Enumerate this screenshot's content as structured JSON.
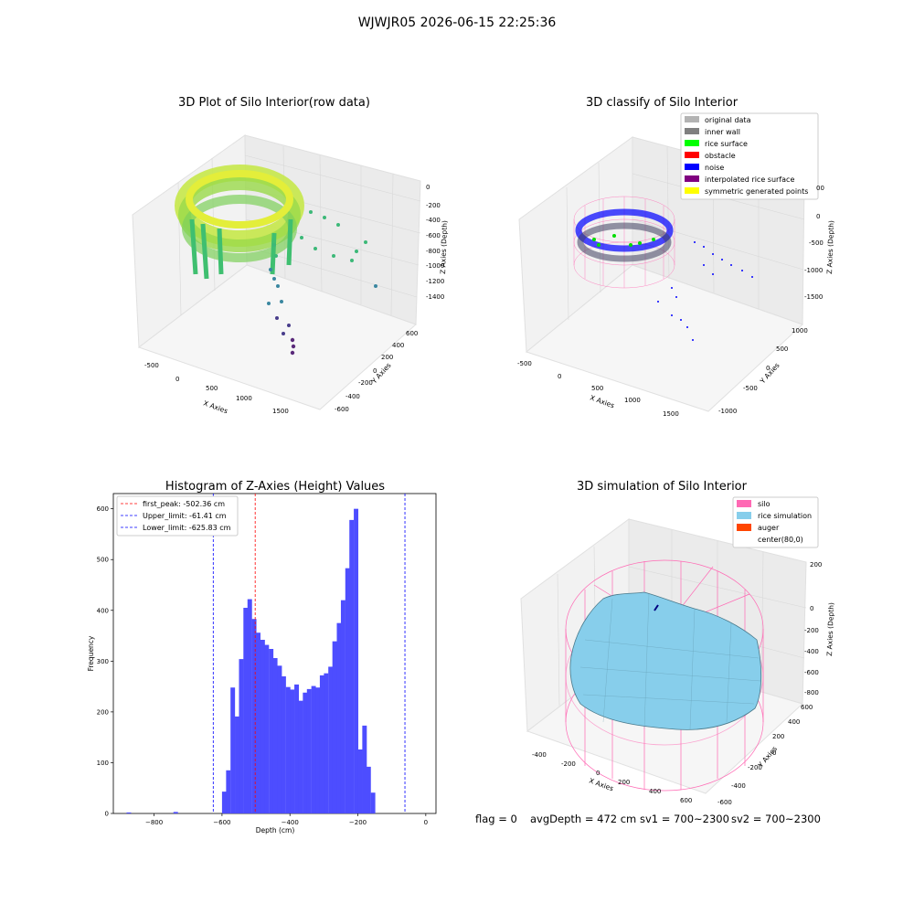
{
  "suptitle": "WJWJR05 2026-06-15 22:25:36",
  "plot1": {
    "title": "3D Plot of Silo Interior(row data)",
    "xlabel": "X Axies",
    "ylabel": "Y Axies",
    "zlabel": "Z Axies (Depth)",
    "x_ticks": [
      "-500",
      "0",
      "500",
      "1000",
      "1500"
    ],
    "y_ticks": [
      "-600",
      "-400",
      "-200",
      "0",
      "200",
      "400",
      "600"
    ],
    "z_ticks": [
      "0",
      "-200",
      "-400",
      "-600",
      "-800",
      "-1000",
      "-1200",
      "-1400"
    ]
  },
  "plot2": {
    "title": "3D classify of Silo Interior",
    "xlabel": "X Axies",
    "ylabel": "Y Axies",
    "zlabel": "Z Axies (Depth)",
    "x_ticks": [
      "-500",
      "0",
      "500",
      "1000",
      "1500"
    ],
    "y_ticks": [
      "-1000",
      "-500",
      "0",
      "500",
      "1000"
    ],
    "z_ticks": [
      "0",
      "-500",
      "-1000",
      "-1500"
    ],
    "z_top_partial": "00",
    "legend": [
      {
        "label": "original data",
        "color": "#b3b3b3"
      },
      {
        "label": "inner wall",
        "color": "#808080"
      },
      {
        "label": "rice surface",
        "color": "#00ff00"
      },
      {
        "label": "obstacle",
        "color": "#ff0000"
      },
      {
        "label": "noise",
        "color": "#0000ff"
      },
      {
        "label": "interpolated rice surface",
        "color": "#800080"
      },
      {
        "label": "symmetric generated points",
        "color": "#ffff00"
      }
    ]
  },
  "chart_data": [
    {
      "type": "histogram",
      "title": "Histogram of Z-Axies (Height) Values",
      "xlabel": "Depth (cm)",
      "ylabel": "Frequency",
      "xlim": [
        -920,
        30
      ],
      "ylim": [
        0,
        630
      ],
      "x_ticks": [
        -800,
        -600,
        -400,
        -200,
        0
      ],
      "y_ticks": [
        0,
        100,
        200,
        300,
        400,
        500,
        600
      ],
      "bar_color": "#4d4dff",
      "bin_width": 12.5,
      "bins": [
        {
          "x": -881,
          "count": 2
        },
        {
          "x": -743,
          "count": 3
        },
        {
          "x": -600,
          "count": 43
        },
        {
          "x": -588,
          "count": 85
        },
        {
          "x": -575,
          "count": 248
        },
        {
          "x": -562,
          "count": 191
        },
        {
          "x": -550,
          "count": 304
        },
        {
          "x": -537,
          "count": 405
        },
        {
          "x": -525,
          "count": 422
        },
        {
          "x": -512,
          "count": 383
        },
        {
          "x": -500,
          "count": 356
        },
        {
          "x": -487,
          "count": 342
        },
        {
          "x": -475,
          "count": 332
        },
        {
          "x": -462,
          "count": 324
        },
        {
          "x": -450,
          "count": 306
        },
        {
          "x": -437,
          "count": 291
        },
        {
          "x": -425,
          "count": 270
        },
        {
          "x": -412,
          "count": 249
        },
        {
          "x": -400,
          "count": 244
        },
        {
          "x": -387,
          "count": 254
        },
        {
          "x": -375,
          "count": 222
        },
        {
          "x": -362,
          "count": 238
        },
        {
          "x": -350,
          "count": 245
        },
        {
          "x": -337,
          "count": 251
        },
        {
          "x": -325,
          "count": 248
        },
        {
          "x": -312,
          "count": 272
        },
        {
          "x": -300,
          "count": 276
        },
        {
          "x": -287,
          "count": 289
        },
        {
          "x": -275,
          "count": 339
        },
        {
          "x": -262,
          "count": 375
        },
        {
          "x": -250,
          "count": 420
        },
        {
          "x": -237,
          "count": 483
        },
        {
          "x": -225,
          "count": 578
        },
        {
          "x": -212,
          "count": 600
        },
        {
          "x": -200,
          "count": 126
        },
        {
          "x": -187,
          "count": 173
        },
        {
          "x": -175,
          "count": 92
        },
        {
          "x": -162,
          "count": 41
        }
      ],
      "lines": [
        {
          "label": "first_peak: -502.36 cm",
          "x": -502.36,
          "color": "#ff0000"
        },
        {
          "label": "Upper_limit: -61.41 cm",
          "x": -61.41,
          "color": "#0000ff"
        },
        {
          "label": "Lower_limit: -625.83 cm",
          "x": -625.83,
          "color": "#0000ff"
        }
      ]
    }
  ],
  "plot4": {
    "title": "3D simulation of Silo Interior",
    "xlabel": "X Axies",
    "ylabel": "Y Axies",
    "zlabel": "Z Axies (Depth)",
    "x_ticks": [
      "-400",
      "-200",
      "0",
      "200",
      "400",
      "600"
    ],
    "y_ticks": [
      "-600",
      "-400",
      "-200",
      "0",
      "200",
      "400",
      "600"
    ],
    "z_ticks": [
      "200",
      "0",
      "-200",
      "-400",
      "-600",
      "-800"
    ],
    "legend": [
      {
        "label": "silo",
        "color": "#ff69b4"
      },
      {
        "label": "rice simulation",
        "color": "#87ceeb"
      },
      {
        "label": "auger",
        "color": "#ff4500"
      },
      {
        "label": "center(80,0)",
        "color": "none"
      }
    ]
  },
  "footer": {
    "flag": "flag = 0",
    "avg": "avgDepth = 472 cm",
    "sv1": "sv1 = 700~2300",
    "sv2": "sv2 = 700~2300"
  }
}
